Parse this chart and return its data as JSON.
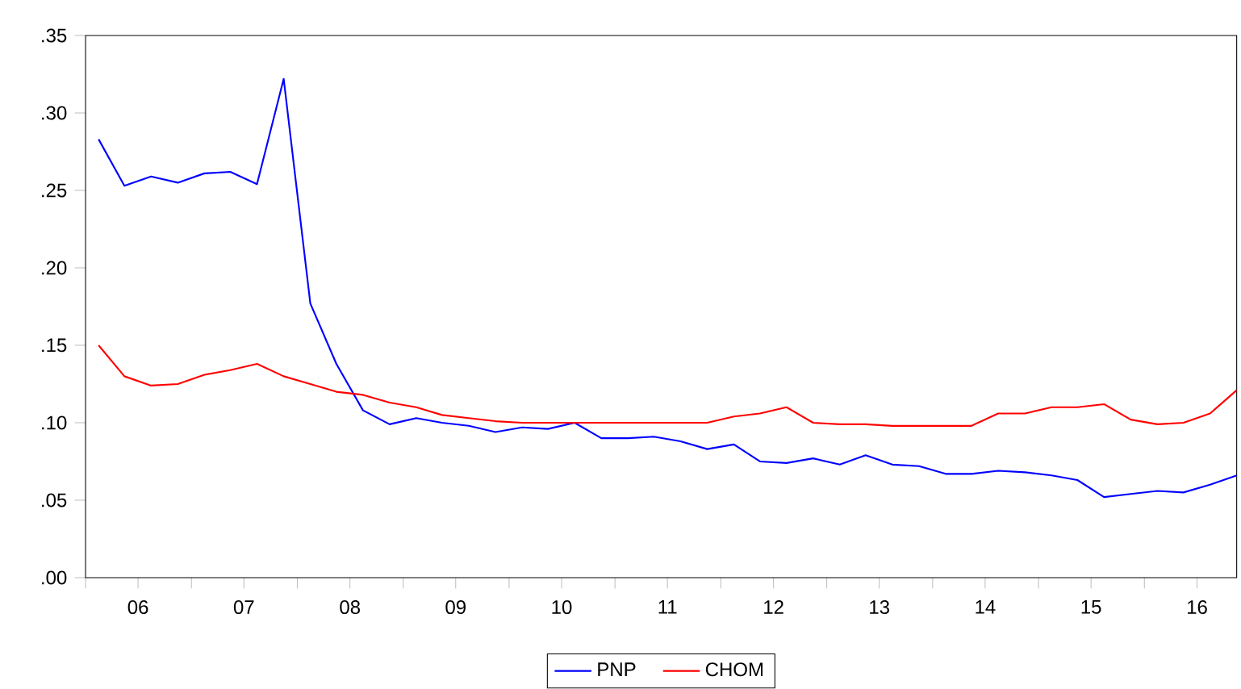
{
  "chart_data": {
    "type": "line",
    "x": [
      "2006-02-15",
      "2006-05-15",
      "2006-08-15",
      "2006-11-15",
      "2007-02-15",
      "2007-05-15",
      "2007-08-15",
      "2007-11-15",
      "2008-02-15",
      "2008-05-15",
      "2008-08-15",
      "2008-11-15",
      "2009-02-15",
      "2009-05-15",
      "2009-08-15",
      "2009-11-15",
      "2010-02-15",
      "2010-05-15",
      "2010-08-15",
      "2010-11-15",
      "2011-02-15",
      "2011-05-15",
      "2011-08-15",
      "2011-11-15",
      "2012-02-15",
      "2012-05-15",
      "2012-08-15",
      "2012-11-15",
      "2013-02-15",
      "2013-05-15",
      "2013-08-15",
      "2013-11-15",
      "2014-02-15",
      "2014-05-15",
      "2014-08-15",
      "2014-11-15",
      "2015-02-15",
      "2015-05-15",
      "2015-08-15",
      "2015-11-15",
      "2016-02-15",
      "2016-05-15",
      "2016-08-15",
      "2016-11-15"
    ],
    "series": [
      {
        "name": "PNP",
        "color": "#0000ff",
        "values": [
          0.283,
          0.253,
          0.259,
          0.255,
          0.261,
          0.262,
          0.254,
          0.322,
          0.177,
          0.138,
          0.108,
          0.099,
          0.103,
          0.1,
          0.098,
          0.094,
          0.097,
          0.096,
          0.1,
          0.09,
          0.09,
          0.091,
          0.088,
          0.083,
          0.086,
          0.075,
          0.074,
          0.077,
          0.073,
          0.079,
          0.073,
          0.072,
          0.067,
          0.067,
          0.069,
          0.068,
          0.066,
          0.063,
          0.052,
          0.054,
          0.056,
          0.055,
          0.06,
          0.066
        ]
      },
      {
        "name": "CHOM",
        "color": "#ff0000",
        "values": [
          0.15,
          0.13,
          0.124,
          0.125,
          0.131,
          0.134,
          0.138,
          0.13,
          0.125,
          0.12,
          0.118,
          0.113,
          0.11,
          0.105,
          0.103,
          0.101,
          0.1,
          0.1,
          0.1,
          0.1,
          0.1,
          0.1,
          0.1,
          0.1,
          0.104,
          0.106,
          0.11,
          0.1,
          0.099,
          0.099,
          0.098,
          0.098,
          0.098,
          0.098,
          0.106,
          0.106,
          0.11,
          0.11,
          0.112,
          0.102,
          0.099,
          0.1,
          0.106,
          0.121
        ]
      }
    ],
    "xlim": [
      "2006-01-01",
      "2016-11-15"
    ],
    "xticks": [
      {
        "value": "2006-01-01",
        "label": null
      },
      {
        "value": "2006-07-01",
        "label": "06"
      },
      {
        "value": "2007-01-01",
        "label": null
      },
      {
        "value": "2007-07-01",
        "label": "07"
      },
      {
        "value": "2008-01-01",
        "label": null
      },
      {
        "value": "2008-07-01",
        "label": "08"
      },
      {
        "value": "2009-01-01",
        "label": null
      },
      {
        "value": "2009-07-01",
        "label": "09"
      },
      {
        "value": "2010-01-01",
        "label": null
      },
      {
        "value": "2010-07-01",
        "label": "10"
      },
      {
        "value": "2011-01-01",
        "label": null
      },
      {
        "value": "2011-07-01",
        "label": "11"
      },
      {
        "value": "2012-01-01",
        "label": null
      },
      {
        "value": "2012-07-01",
        "label": "12"
      },
      {
        "value": "2013-01-01",
        "label": null
      },
      {
        "value": "2013-07-01",
        "label": "13"
      },
      {
        "value": "2014-01-01",
        "label": null
      },
      {
        "value": "2014-07-01",
        "label": "14"
      },
      {
        "value": "2015-01-01",
        "label": null
      },
      {
        "value": "2015-07-01",
        "label": "15"
      },
      {
        "value": "2016-01-01",
        "label": null
      },
      {
        "value": "2016-07-01",
        "label": "16"
      }
    ],
    "ylim": [
      0,
      0.35
    ],
    "yticks": [
      {
        "value": 0,
        "label": ".00"
      },
      {
        "value": 0.05,
        "label": ".05"
      },
      {
        "value": 0.1,
        "label": ".10"
      },
      {
        "value": 0.15,
        "label": ".15"
      },
      {
        "value": 0.2,
        "label": ".20"
      },
      {
        "value": 0.25,
        "label": ".25"
      },
      {
        "value": 0.3,
        "label": ".30"
      },
      {
        "value": 0.35,
        "label": ".35"
      }
    ],
    "grid": false,
    "legend": "bottom",
    "marker": "none",
    "line_style": "solid"
  }
}
